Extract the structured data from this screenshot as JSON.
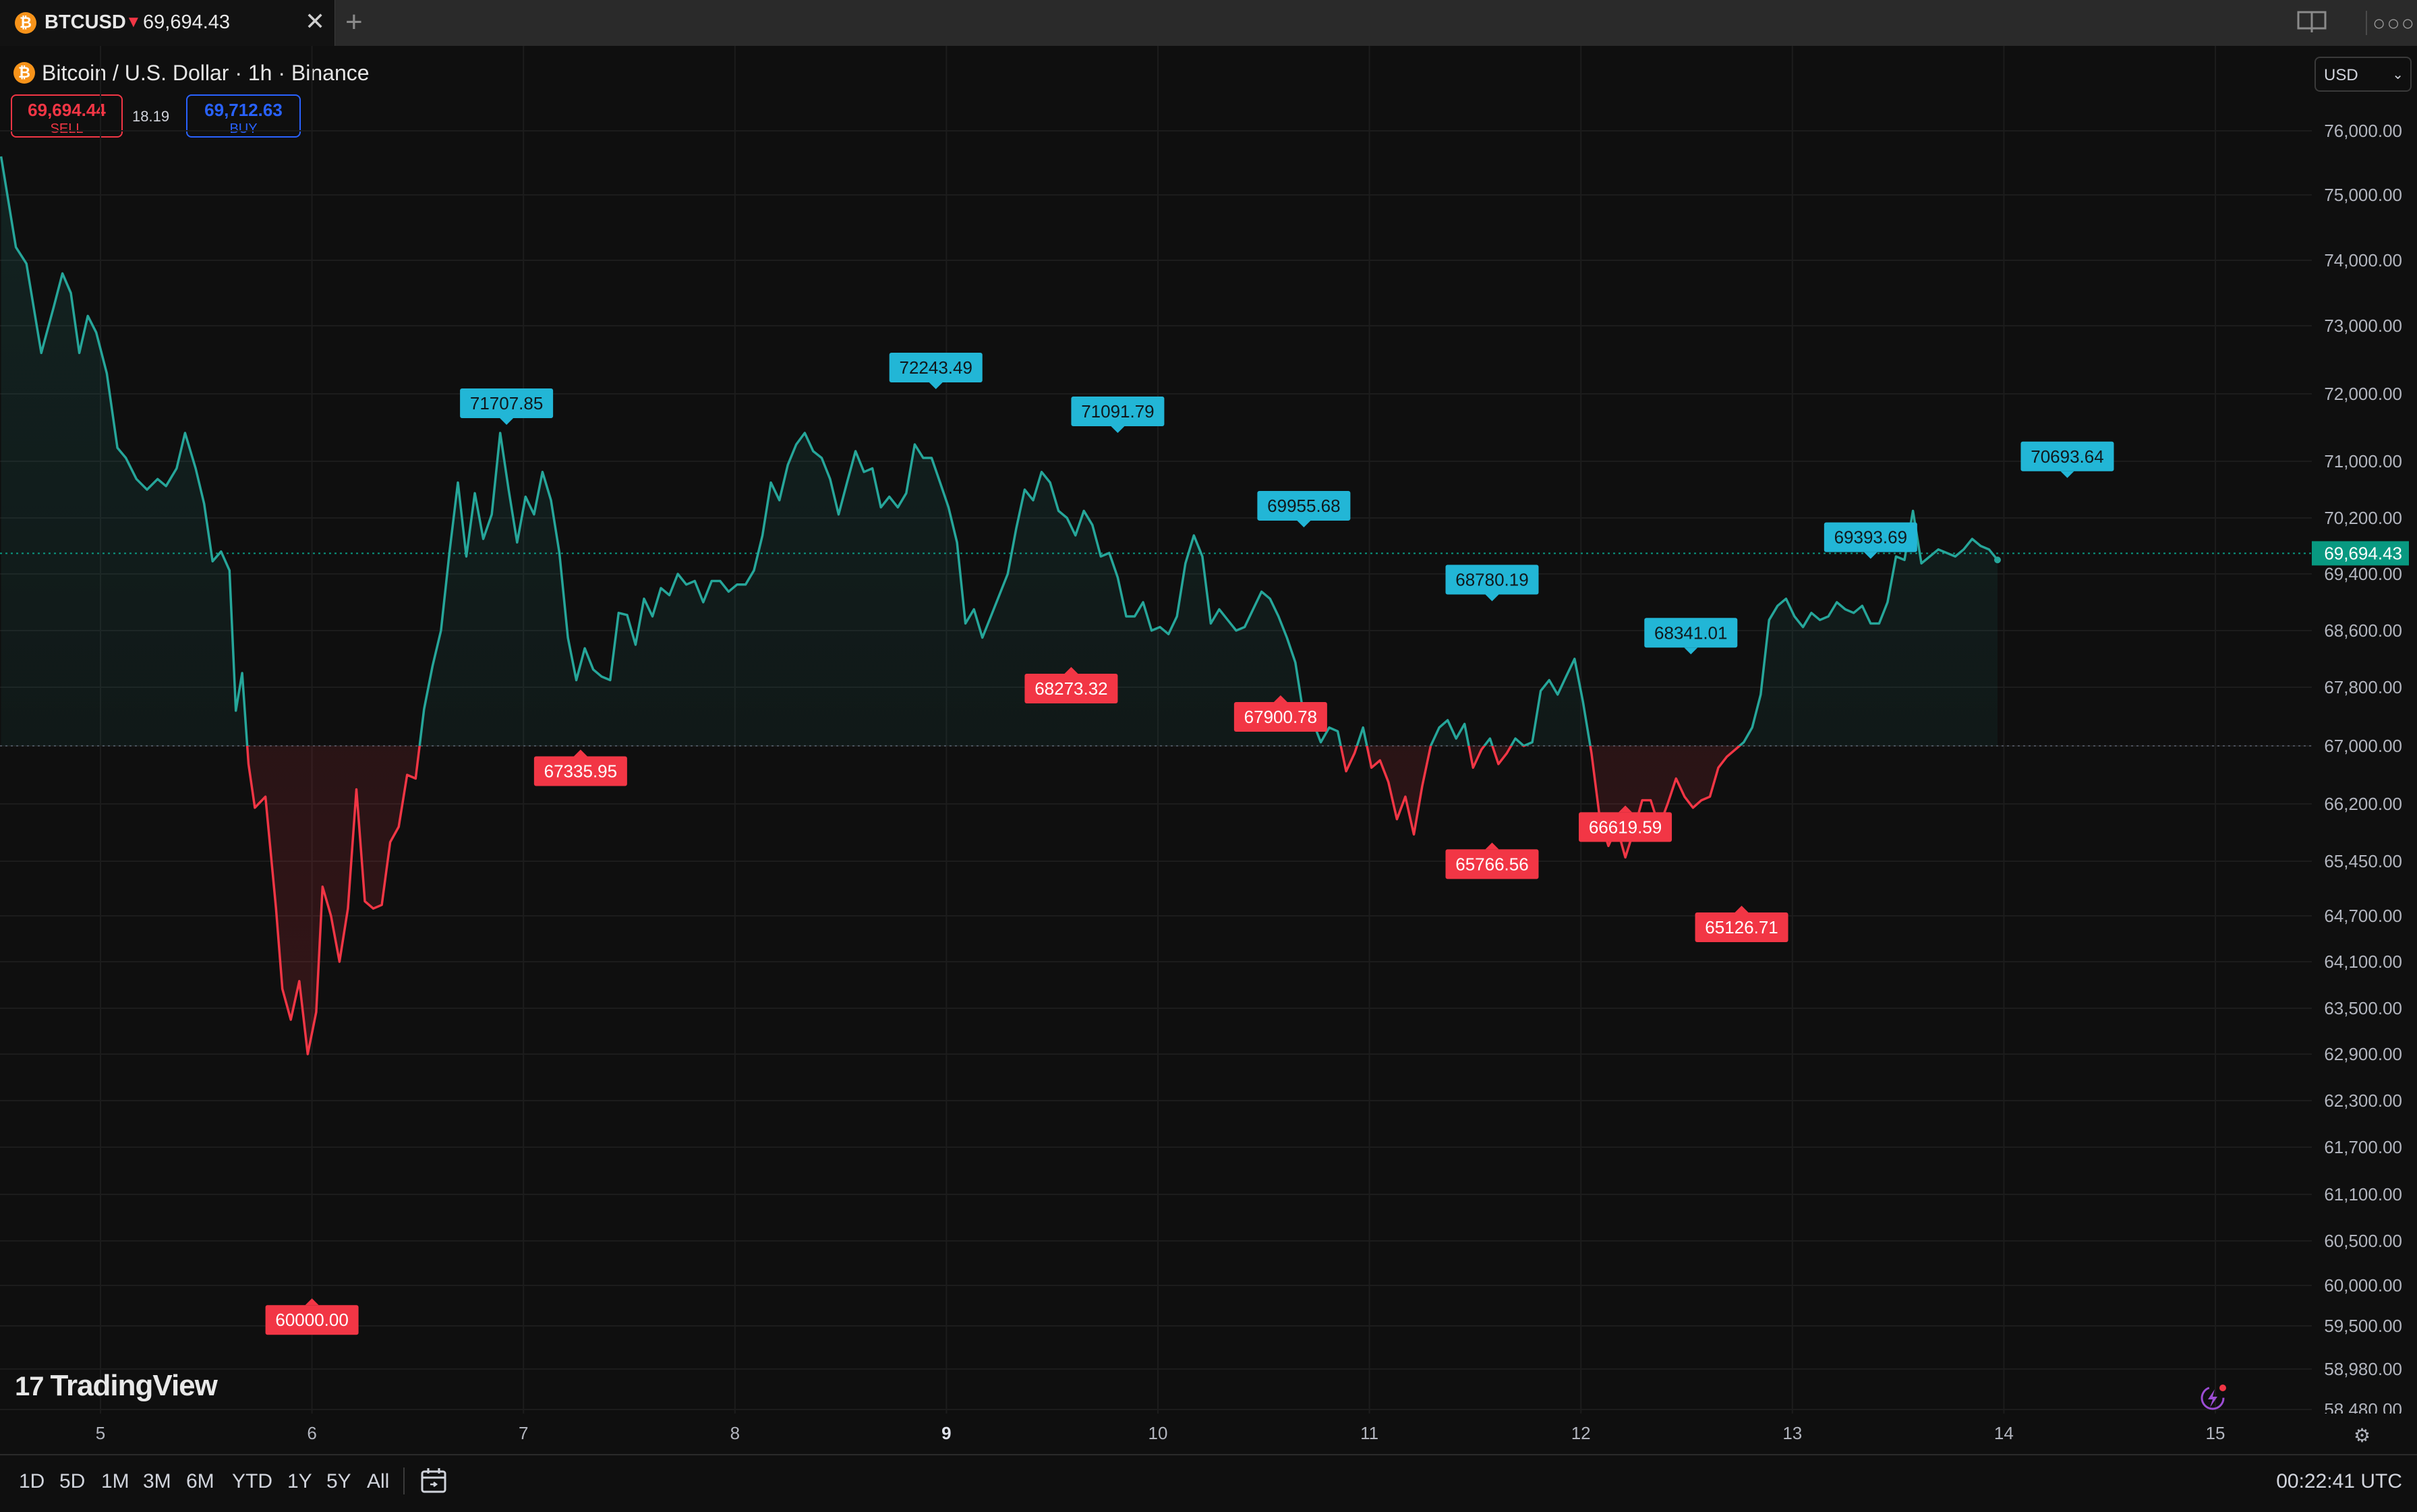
{
  "tab": {
    "symbol": "BTCUSD",
    "direction": "▼",
    "price": "69,694.43",
    "close": "✕",
    "new": "+"
  },
  "header": {
    "title": "Bitcoin / U.S. Dollar · 1h · Binance",
    "sell_price": "69,694.44",
    "sell_label": "SELL",
    "buy_price": "69,712.63",
    "buy_label": "BUY",
    "spread": "18.19",
    "currency": "USD",
    "currency_chevron": "⌄"
  },
  "chart_data": {
    "type": "line",
    "symbol": "BTCUSD",
    "baseline": 67000,
    "colors": {
      "up": "#26a69a",
      "down": "#f23645",
      "peak_label": "#22b6d6",
      "trough_label": "#f23645",
      "last_price_bg": "#089981"
    },
    "last_price": "69,694.43",
    "y_ticks": [
      "76,000.00",
      "75,000.00",
      "74,000.00",
      "73,000.00",
      "72,000.00",
      "71,000.00",
      "70,200.00",
      "69,400.00",
      "68,600.00",
      "67,800.00",
      "67,000.00",
      "66,200.00",
      "65,450.00",
      "64,700.00",
      "64,100.00",
      "63,500.00",
      "62,900.00",
      "62,300.00",
      "61,700.00",
      "61,100.00",
      "60,500.00",
      "60,000.00",
      "59,500.00",
      "58,980.00",
      "58,480.00"
    ],
    "x_ticks": [
      {
        "label": "5",
        "bold": false
      },
      {
        "label": "6",
        "bold": false
      },
      {
        "label": "7",
        "bold": false
      },
      {
        "label": "8",
        "bold": false
      },
      {
        "label": "9",
        "bold": true
      },
      {
        "label": "10",
        "bold": false
      },
      {
        "label": "11",
        "bold": false
      },
      {
        "label": "12",
        "bold": false
      },
      {
        "label": "13",
        "bold": false
      },
      {
        "label": "14",
        "bold": false
      },
      {
        "label": "15",
        "bold": false
      }
    ],
    "x_range": [
      4.53,
      15.45
    ],
    "series": [
      {
        "values": [
          [
            4.53,
            75600
          ],
          [
            4.6,
            74200
          ],
          [
            4.65,
            73950
          ],
          [
            4.72,
            72600
          ],
          [
            4.78,
            73300
          ],
          [
            4.82,
            73800
          ],
          [
            4.86,
            73500
          ],
          [
            4.9,
            72600
          ],
          [
            4.94,
            73150
          ],
          [
            4.98,
            72900
          ],
          [
            5.03,
            72300
          ],
          [
            5.08,
            71200
          ],
          [
            5.12,
            71050
          ],
          [
            5.17,
            70750
          ],
          [
            5.22,
            70600
          ],
          [
            5.27,
            70750
          ],
          [
            5.31,
            70650
          ],
          [
            5.36,
            70900
          ],
          [
            5.4,
            71420
          ],
          [
            5.45,
            70900
          ],
          [
            5.49,
            70400
          ],
          [
            5.53,
            69580
          ],
          [
            5.57,
            69720
          ],
          [
            5.61,
            69450
          ],
          [
            5.64,
            67480
          ],
          [
            5.67,
            68000
          ],
          [
            5.7,
            66750
          ],
          [
            5.73,
            66150
          ],
          [
            5.78,
            66300
          ],
          [
            5.83,
            64800
          ],
          [
            5.86,
            63750
          ],
          [
            5.9,
            63350
          ],
          [
            5.94,
            63850
          ],
          [
            5.98,
            62900
          ],
          [
            6.02,
            63450
          ],
          [
            6.05,
            65100
          ],
          [
            6.09,
            64700
          ],
          [
            6.13,
            64100
          ],
          [
            6.17,
            64800
          ],
          [
            6.21,
            66400
          ],
          [
            6.25,
            64900
          ],
          [
            6.29,
            64800
          ],
          [
            6.33,
            64850
          ],
          [
            6.37,
            65700
          ],
          [
            6.41,
            65900
          ],
          [
            6.45,
            66600
          ],
          [
            6.49,
            66550
          ],
          [
            6.53,
            67500
          ],
          [
            6.57,
            68100
          ],
          [
            6.61,
            68600
          ],
          [
            6.65,
            69700
          ],
          [
            6.69,
            70700
          ],
          [
            6.73,
            69650
          ],
          [
            6.77,
            70550
          ],
          [
            6.81,
            69900
          ],
          [
            6.85,
            70250
          ],
          [
            6.89,
            71420
          ],
          [
            6.93,
            70600
          ],
          [
            6.97,
            69850
          ],
          [
            7.01,
            70500
          ],
          [
            7.05,
            70250
          ],
          [
            7.09,
            70850
          ],
          [
            7.13,
            70450
          ],
          [
            7.17,
            69700
          ],
          [
            7.21,
            68500
          ],
          [
            7.25,
            67900
          ],
          [
            7.29,
            68350
          ],
          [
            7.33,
            68050
          ],
          [
            7.37,
            67950
          ],
          [
            7.41,
            67900
          ],
          [
            7.45,
            68850
          ],
          [
            7.49,
            68820
          ],
          [
            7.53,
            68400
          ],
          [
            7.57,
            69050
          ],
          [
            7.61,
            68800
          ],
          [
            7.65,
            69200
          ],
          [
            7.69,
            69100
          ],
          [
            7.73,
            69400
          ],
          [
            7.77,
            69250
          ],
          [
            7.81,
            69300
          ],
          [
            7.85,
            69000
          ],
          [
            7.89,
            69300
          ],
          [
            7.93,
            69300
          ],
          [
            7.97,
            69150
          ],
          [
            8.01,
            69250
          ],
          [
            8.05,
            69250
          ],
          [
            8.09,
            69450
          ],
          [
            8.13,
            69950
          ],
          [
            8.17,
            70700
          ],
          [
            8.21,
            70450
          ],
          [
            8.25,
            70950
          ],
          [
            8.29,
            71250
          ],
          [
            8.33,
            71420
          ],
          [
            8.37,
            71150
          ],
          [
            8.41,
            71050
          ],
          [
            8.45,
            70750
          ],
          [
            8.49,
            70250
          ],
          [
            8.53,
            70700
          ],
          [
            8.57,
            71150
          ],
          [
            8.61,
            70850
          ],
          [
            8.65,
            70900
          ],
          [
            8.69,
            70350
          ],
          [
            8.73,
            70500
          ],
          [
            8.77,
            70350
          ],
          [
            8.81,
            70550
          ],
          [
            8.85,
            71250
          ],
          [
            8.89,
            71050
          ],
          [
            8.93,
            71050
          ],
          [
            8.97,
            70700
          ],
          [
            9.01,
            70350
          ],
          [
            9.05,
            69850
          ],
          [
            9.09,
            68700
          ],
          [
            9.13,
            68900
          ],
          [
            9.17,
            68500
          ],
          [
            9.21,
            68800
          ],
          [
            9.25,
            69100
          ],
          [
            9.29,
            69400
          ],
          [
            9.33,
            70050
          ],
          [
            9.37,
            70600
          ],
          [
            9.41,
            70450
          ],
          [
            9.45,
            70850
          ],
          [
            9.49,
            70700
          ],
          [
            9.53,
            70300
          ],
          [
            9.57,
            70200
          ],
          [
            9.61,
            69950
          ],
          [
            9.65,
            70300
          ],
          [
            9.69,
            70100
          ],
          [
            9.73,
            69650
          ],
          [
            9.77,
            69700
          ],
          [
            9.81,
            69350
          ],
          [
            9.85,
            68800
          ],
          [
            9.89,
            68800
          ],
          [
            9.93,
            69000
          ],
          [
            9.97,
            68600
          ],
          [
            10.01,
            68650
          ],
          [
            10.05,
            68550
          ],
          [
            10.09,
            68800
          ],
          [
            10.13,
            69550
          ],
          [
            10.17,
            69950
          ],
          [
            10.21,
            69650
          ],
          [
            10.25,
            68700
          ],
          [
            10.29,
            68900
          ],
          [
            10.33,
            68750
          ],
          [
            10.37,
            68600
          ],
          [
            10.41,
            68650
          ],
          [
            10.45,
            68900
          ],
          [
            10.49,
            69150
          ],
          [
            10.53,
            69050
          ],
          [
            10.57,
            68800
          ],
          [
            10.61,
            68500
          ],
          [
            10.65,
            68150
          ],
          [
            10.69,
            67400
          ],
          [
            10.73,
            67350
          ],
          [
            10.77,
            67050
          ],
          [
            10.81,
            67250
          ],
          [
            10.85,
            67200
          ],
          [
            10.89,
            66650
          ],
          [
            10.93,
            66900
          ],
          [
            10.97,
            67250
          ],
          [
            11.01,
            66700
          ],
          [
            11.05,
            66800
          ],
          [
            11.09,
            66500
          ],
          [
            11.13,
            66000
          ],
          [
            11.17,
            66300
          ],
          [
            11.21,
            65800
          ],
          [
            11.25,
            66450
          ],
          [
            11.29,
            67000
          ],
          [
            11.33,
            67250
          ],
          [
            11.37,
            67350
          ],
          [
            11.41,
            67100
          ],
          [
            11.45,
            67300
          ],
          [
            11.49,
            66700
          ],
          [
            11.53,
            66950
          ],
          [
            11.57,
            67100
          ],
          [
            11.61,
            66750
          ],
          [
            11.65,
            66900
          ],
          [
            11.69,
            67100
          ],
          [
            11.73,
            67000
          ],
          [
            11.77,
            67050
          ],
          [
            11.81,
            67750
          ],
          [
            11.85,
            67900
          ],
          [
            11.89,
            67700
          ],
          [
            11.93,
            67950
          ],
          [
            11.97,
            68200
          ],
          [
            12.01,
            67600
          ],
          [
            12.05,
            66900
          ],
          [
            12.09,
            66000
          ],
          [
            12.13,
            65650
          ],
          [
            12.17,
            65900
          ],
          [
            12.21,
            65500
          ],
          [
            12.25,
            65850
          ],
          [
            12.29,
            66250
          ],
          [
            12.33,
            66250
          ],
          [
            12.37,
            65900
          ],
          [
            12.41,
            66200
          ],
          [
            12.45,
            66550
          ],
          [
            12.49,
            66300
          ],
          [
            12.53,
            66150
          ],
          [
            12.57,
            66250
          ],
          [
            12.61,
            66300
          ],
          [
            12.65,
            66700
          ],
          [
            12.69,
            66850
          ],
          [
            12.73,
            66950
          ],
          [
            12.77,
            67050
          ],
          [
            12.81,
            67250
          ],
          [
            12.85,
            67700
          ],
          [
            12.89,
            68750
          ],
          [
            12.93,
            68950
          ],
          [
            12.97,
            69050
          ],
          [
            13.01,
            68800
          ],
          [
            13.05,
            68650
          ],
          [
            13.09,
            68850
          ],
          [
            13.13,
            68750
          ],
          [
            13.17,
            68800
          ],
          [
            13.21,
            69000
          ],
          [
            13.25,
            68900
          ],
          [
            13.29,
            68850
          ],
          [
            13.33,
            68950
          ],
          [
            13.37,
            68700
          ],
          [
            13.41,
            68700
          ],
          [
            13.45,
            69000
          ],
          [
            13.49,
            69650
          ],
          [
            13.53,
            69600
          ],
          [
            13.57,
            70300
          ],
          [
            13.61,
            69550
          ],
          [
            13.65,
            69650
          ],
          [
            13.69,
            69750
          ],
          [
            13.73,
            69700
          ],
          [
            13.77,
            69650
          ],
          [
            13.81,
            69750
          ],
          [
            13.85,
            69900
          ],
          [
            13.89,
            69800
          ],
          [
            13.93,
            69750
          ],
          [
            13.97,
            69600
          ]
        ]
      }
    ],
    "annotations": [
      {
        "kind": "peak",
        "x": 6.92,
        "y": 71420,
        "label": "71707.85"
      },
      {
        "kind": "peak",
        "x": 8.95,
        "y": 71950,
        "label": "72243.49"
      },
      {
        "kind": "peak",
        "x": 9.81,
        "y": 71300,
        "label": "71091.79"
      },
      {
        "kind": "peak",
        "x": 10.69,
        "y": 69950,
        "label": "69955.68"
      },
      {
        "kind": "peak",
        "x": 11.58,
        "y": 68900,
        "label": "68780.19"
      },
      {
        "kind": "peak",
        "x": 12.52,
        "y": 68150,
        "label": "68341.01"
      },
      {
        "kind": "peak",
        "x": 13.37,
        "y": 69500,
        "label": "69393.69"
      },
      {
        "kind": "peak",
        "x": 14.3,
        "y": 70650,
        "label": "70693.64"
      },
      {
        "kind": "trough",
        "x": 7.27,
        "y": 67060,
        "label": "67335.95"
      },
      {
        "kind": "trough",
        "x": 9.59,
        "y": 68200,
        "label": "68273.32"
      },
      {
        "kind": "trough",
        "x": 10.58,
        "y": 67800,
        "label": "67900.78"
      },
      {
        "kind": "trough",
        "x": 11.58,
        "y": 65800,
        "label": "65766.56"
      },
      {
        "kind": "trough",
        "x": 12.21,
        "y": 66290,
        "label": "66619.59"
      },
      {
        "kind": "trough",
        "x": 12.76,
        "y": 64950,
        "label": "65126.71"
      },
      {
        "kind": "trough",
        "x": 6.0,
        "y": 59940,
        "label": "60000.00"
      }
    ]
  },
  "brand": {
    "name": "TradingView",
    "mark": "17"
  },
  "bottom": {
    "ranges": [
      "1D",
      "5D",
      "1M",
      "3M",
      "6M",
      "YTD",
      "1Y",
      "5Y",
      "All"
    ],
    "clock": "00:22:41 UTC"
  }
}
